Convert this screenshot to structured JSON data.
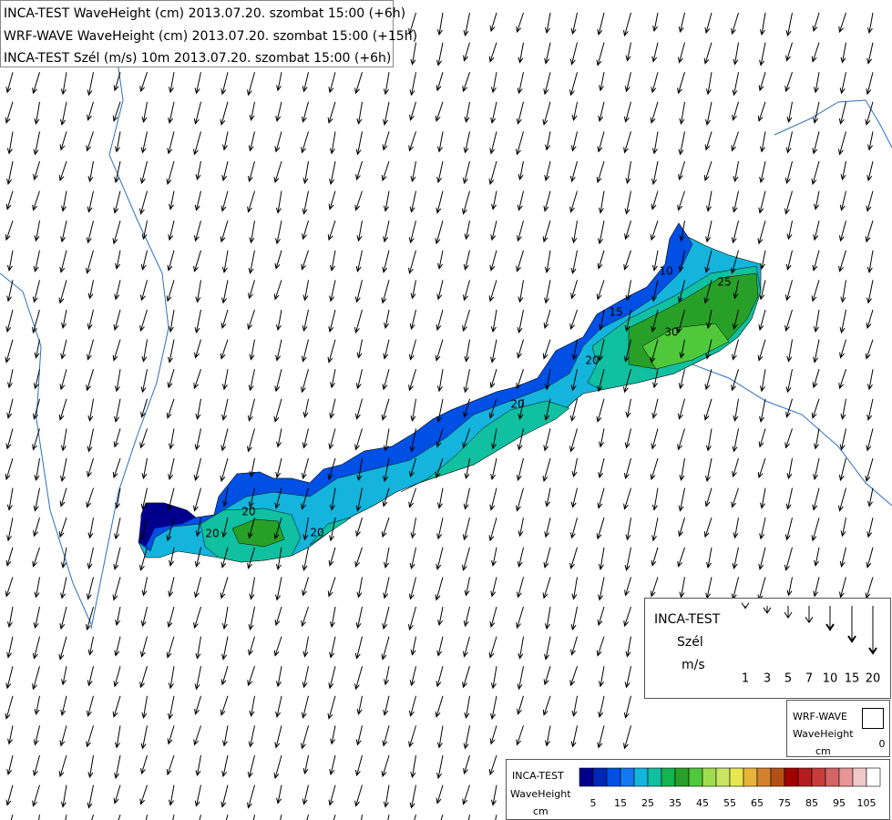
{
  "header": {
    "lines": [
      "INCA-TEST WaveHeight (cm) 2013.07.20. szombat 15:00 (+6h)",
      "WRF-WAVE WaveHeight (cm) 2013.07.20. szombat 15:00 (+15h)",
      "INCA-TEST Szél (m/s) 10m 2013.07.20. szombat 15:00 (+6h)"
    ]
  },
  "contour_labels": [
    "10",
    "15",
    "25",
    "30",
    "20",
    "20",
    "20",
    "20",
    "20"
  ],
  "wind_legend": {
    "title": "INCA-TEST",
    "quantity": "Szél",
    "unit": "m/s",
    "speeds": [
      1,
      3,
      5,
      7,
      10,
      15,
      20
    ]
  },
  "wrf_legend": {
    "title": "WRF-WAVE",
    "quantity": "WaveHeight",
    "unit": "cm",
    "value": 0
  },
  "color_legend": {
    "title": "INCA-TEST",
    "quantity": "WaveHeight",
    "unit": "cm",
    "labels": [
      5,
      15,
      25,
      35,
      45,
      55,
      65,
      75,
      85,
      95,
      105
    ],
    "colors": [
      "#00008c",
      "#0028b4",
      "#0050e6",
      "#1478f0",
      "#14b4dc",
      "#10c0a0",
      "#14b450",
      "#28a028",
      "#50c83c",
      "#a0dc50",
      "#c8e664",
      "#e6e650",
      "#e6b43c",
      "#d2822d",
      "#b45014",
      "#a00000",
      "#b41e1e",
      "#c83c3c",
      "#d26464",
      "#e69696",
      "#f0c8c8",
      "#ffffff"
    ]
  }
}
